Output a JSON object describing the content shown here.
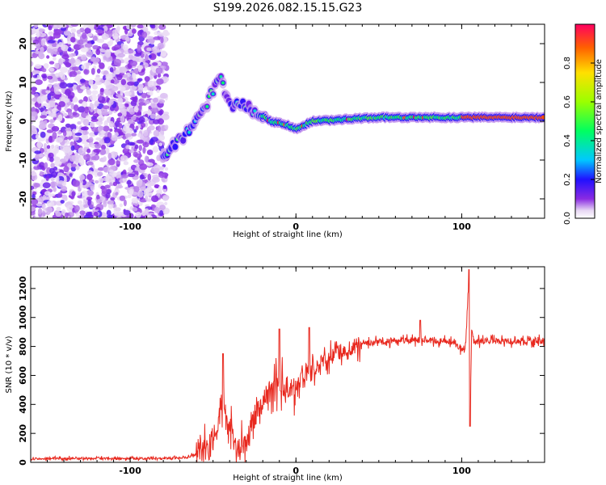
{
  "title": "S199.2026.082.15.15.G23",
  "chart_data": [
    {
      "type": "heatmap",
      "xlabel": "Height of straight line (km)",
      "ylabel": "Frequency (Hz)",
      "xlim": [
        -160,
        150
      ],
      "ylim": [
        -25,
        25
      ],
      "x_ticks": [
        "-100",
        "0",
        "100"
      ],
      "y_ticks": [
        "-20",
        "-10",
        "0",
        "10",
        "20"
      ],
      "colorbar": {
        "label": "Normalized spectral amplitude",
        "range": [
          0,
          1
        ],
        "ticks": [
          "0.0",
          "0.2",
          "0.4",
          "0.6",
          "0.8"
        ]
      },
      "description_points": {
        "noise_region_x": [
          -160,
          -78
        ],
        "ridge": [
          {
            "x": -75,
            "f": -7
          },
          {
            "x": -68,
            "f": -4
          },
          {
            "x": -62,
            "f": -1
          },
          {
            "x": -57,
            "f": 2
          },
          {
            "x": -50,
            "f": 8
          },
          {
            "x": -45,
            "f": 11
          },
          {
            "x": -40,
            "f": 4
          },
          {
            "x": -30,
            "f": 4
          },
          {
            "x": -22,
            "f": 2
          },
          {
            "x": -15,
            "f": 0
          },
          {
            "x": -5,
            "f": -1
          },
          {
            "x": 0,
            "f": -2
          },
          {
            "x": 10,
            "f": 0
          },
          {
            "x": 50,
            "f": 1
          },
          {
            "x": 100,
            "f": 1
          },
          {
            "x": 150,
            "f": 1
          }
        ]
      }
    },
    {
      "type": "line",
      "xlabel": "Height of straight line (km)",
      "ylabel": "SNR (10 * v/v)",
      "xlim": [
        -160,
        150
      ],
      "ylim": [
        0,
        1350
      ],
      "x_ticks": [
        "-100",
        "0",
        "100"
      ],
      "y_ticks": [
        "0",
        "200",
        "400",
        "600",
        "800",
        "1000",
        "1200"
      ],
      "series": [
        {
          "name": "SNR",
          "color": "#e8281e",
          "x": [
            -160,
            -120,
            -80,
            -65,
            -55,
            -48,
            -45,
            -42,
            -38,
            -35,
            -30,
            -25,
            -20,
            -15,
            -10,
            -5,
            0,
            5,
            10,
            15,
            20,
            30,
            40,
            60,
            80,
            95,
            102,
            104,
            105,
            106,
            108,
            115,
            130,
            150
          ],
          "y": [
            25,
            30,
            25,
            35,
            80,
            200,
            420,
            300,
            170,
            80,
            120,
            310,
            430,
            500,
            560,
            500,
            520,
            600,
            640,
            680,
            720,
            780,
            820,
            840,
            845,
            830,
            760,
            1200,
            260,
            900,
            830,
            840,
            835,
            840
          ]
        }
      ],
      "peaks": [
        {
          "x": -44,
          "y": 750
        },
        {
          "x": -10,
          "y": 920
        },
        {
          "x": 8,
          "y": 930
        },
        {
          "x": 75,
          "y": 980
        },
        {
          "x": 104.5,
          "y": 1330
        },
        {
          "x": 105,
          "y": 250
        }
      ]
    }
  ]
}
